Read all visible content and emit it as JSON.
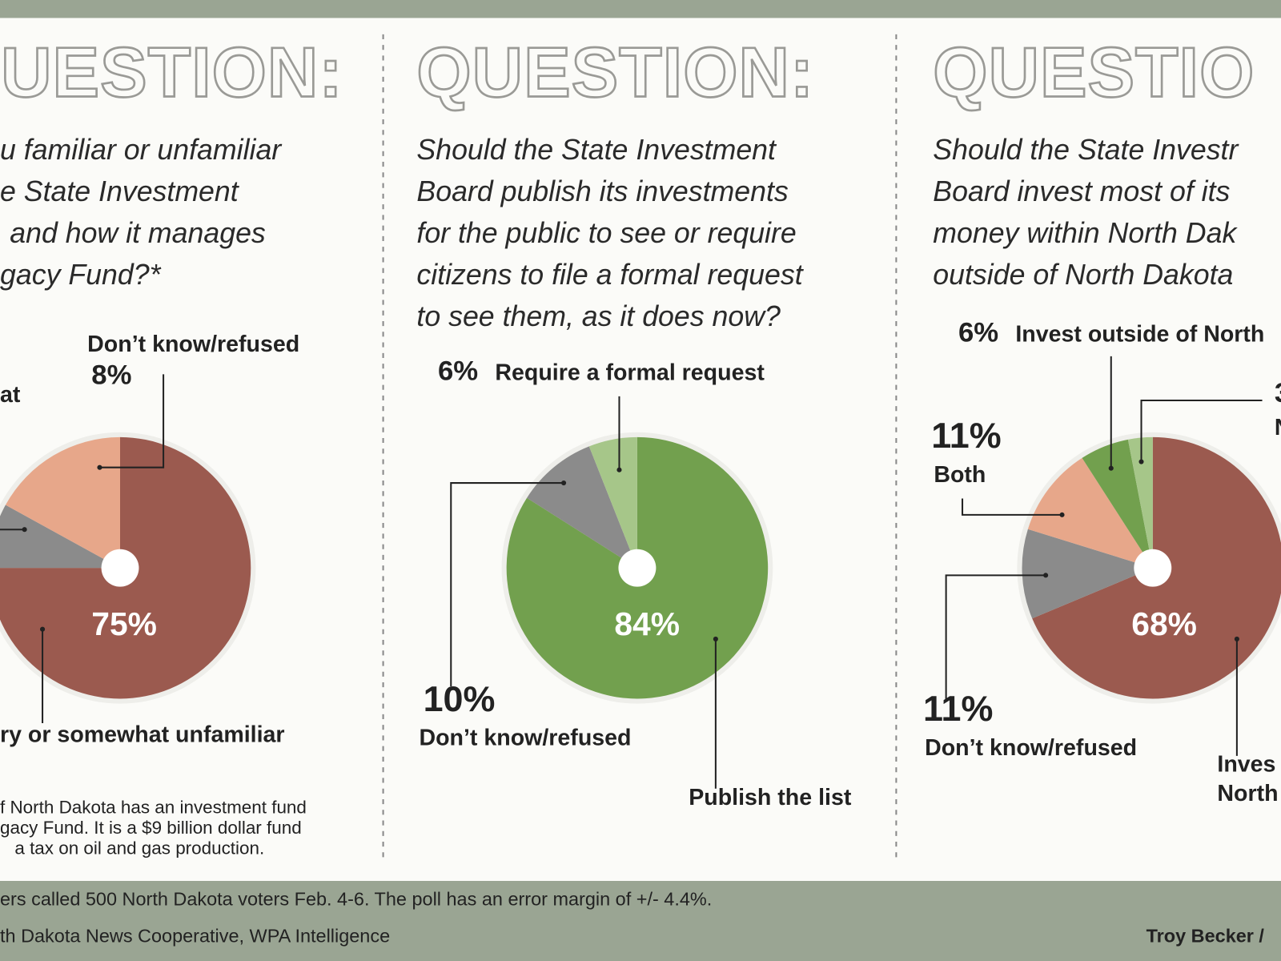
{
  "chart_data": [
    {
      "type": "pie",
      "heading": "UESTION:",
      "question": [
        "u familiar or unfamiliar",
        "e State Investment",
        "and how it manages",
        "gacy Fund?*"
      ],
      "categories": [
        "ry or somewhat unfamiliar",
        "Don’t know/refused",
        "at"
      ],
      "values": [
        75,
        8,
        17
      ],
      "value_labels": [
        "75%",
        "8%",
        null
      ],
      "colors": [
        "#9b5a4f",
        "#8b8b8b",
        "#e7a78a"
      ],
      "footnote": [
        "f North Dakota has an investment fund",
        "gacy Fund. It is a $9 billion dollar fund",
        "a tax on oil and gas production."
      ]
    },
    {
      "type": "pie",
      "heading": "QUESTION:",
      "question": [
        "Should the State Investment",
        "Board publish its investments",
        "for the public to see or require",
        "citizens to file a formal request",
        "to see them, as it does now?"
      ],
      "categories": [
        "Publish the list",
        "Don’t know/refused",
        "Require a formal request"
      ],
      "values": [
        84,
        10,
        6
      ],
      "value_labels": [
        "84%",
        "10%",
        "6%"
      ],
      "colors": [
        "#72a04e",
        "#8b8b8b",
        "#a6c689"
      ]
    },
    {
      "type": "pie",
      "heading": "QUESTIO",
      "question": [
        "Should the State Investr",
        "Board invest most of its",
        "money within North Dak",
        "outside of North Dakota"
      ],
      "categories": [
        [
          "Inves",
          "North"
        ],
        "Don’t know/refused",
        "Both",
        "Invest outside of North",
        "N"
      ],
      "values": [
        68,
        11,
        11,
        6,
        3
      ],
      "value_labels": [
        "68%",
        "11%",
        "11%",
        "6%",
        "3"
      ],
      "colors": [
        "#9b5a4f",
        "#8b8b8b",
        "#e7a78a",
        "#72a04e",
        "#a6c689"
      ]
    }
  ],
  "footer": {
    "method": "ers called 500 North Dakota voters Feb. 4-6. The poll has an error margin of +/- 4.4%.",
    "source": "th Dakota News Cooperative, WPA Intelligence",
    "credit": "Troy Becker /"
  }
}
